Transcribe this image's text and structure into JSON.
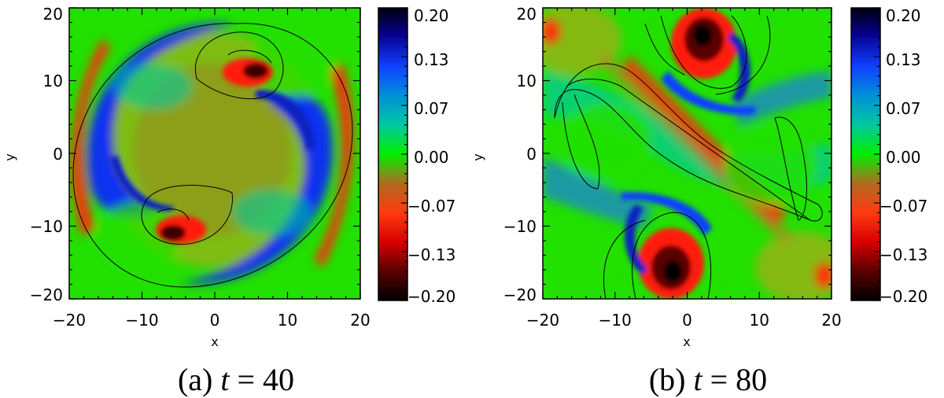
{
  "chart_data": [
    {
      "type": "heatmap",
      "caption": {
        "prefix": "(a) ",
        "variable": "t",
        "equals": " = 40"
      },
      "xlabel": "x",
      "ylabel": "y",
      "xlim": [
        -20,
        20
      ],
      "ylim": [
        -20,
        20
      ],
      "xticks": [
        "−20",
        "−10",
        "0",
        "10",
        "20"
      ],
      "yticks": [
        "−20",
        "−10",
        "0",
        "10",
        "20"
      ],
      "colorbar": {
        "range": [
          -0.2,
          0.2
        ],
        "ticks": [
          "0.20",
          "0.13",
          "0.07",
          "0.00",
          "−0.07",
          "−0.13",
          "−0.20"
        ],
        "colors": [
          "#000000",
          "#5a0000",
          "#d80000",
          "#ff3a10",
          "#b06a20",
          "#00ee00",
          "#00c8a0",
          "#0090d8",
          "#1040ff",
          "#06008c",
          "#000010"
        ]
      },
      "structures": {
        "vortex_centers": [
          [
            5.5,
            11
          ],
          [
            -5.5,
            -11
          ]
        ],
        "spiral_arms": "negative arms wrap to the left/bottom, positive arms to the right/top"
      }
    },
    {
      "type": "heatmap",
      "caption": {
        "prefix": "(b) ",
        "variable": "t",
        "equals": " = 80"
      },
      "xlabel": "x",
      "ylabel": "y",
      "xlim": [
        -20,
        20
      ],
      "ylim": [
        -20,
        20
      ],
      "xticks": [
        "−20",
        "−10",
        "0",
        "10",
        "20"
      ],
      "yticks": [
        "−20",
        "−10",
        "0",
        "10",
        "20"
      ],
      "colorbar": {
        "range": [
          -0.2,
          0.2
        ],
        "ticks": [
          "0.20",
          "0.13",
          "0.07",
          "0.00",
          "−0.07",
          "−0.13",
          "−0.20"
        ],
        "colors": [
          "#000000",
          "#5a0000",
          "#d80000",
          "#ff3a10",
          "#b06a20",
          "#00ee00",
          "#00c8a0",
          "#0090d8",
          "#1040ff",
          "#06008c",
          "#000010"
        ]
      },
      "structures": {
        "vortex_centers": [
          [
            1.5,
            16.5
          ],
          [
            -1.5,
            -16.5
          ]
        ],
        "central_band": "diagonal negative band from upper-left to lower-right"
      }
    }
  ]
}
